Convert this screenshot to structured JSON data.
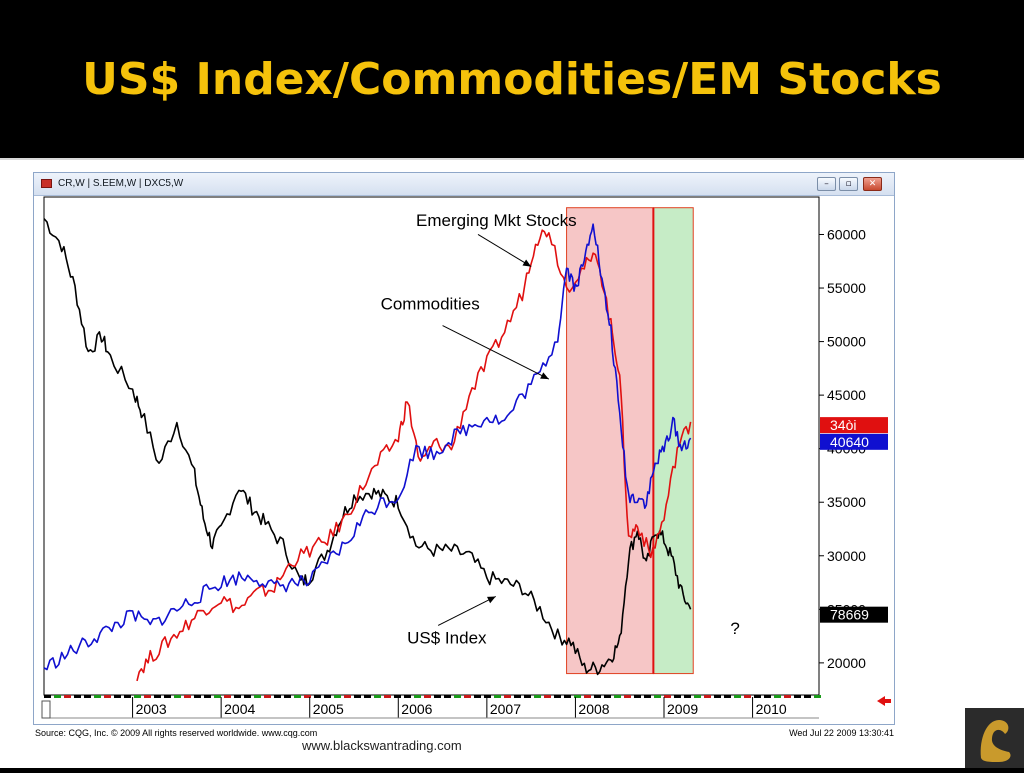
{
  "slide": {
    "title": "US$ Index/Commodities/EM Stocks",
    "footer_url": "www.blackswantrading.com"
  },
  "window": {
    "title": "CR,W  |  S.EEM,W  |  DXC5,W",
    "buttons": {
      "minimize": "–",
      "restore": "▫",
      "close": "✕"
    }
  },
  "footer": {
    "source": "Source: CQG, Inc. © 2009 All rights reserved worldwide. www.cqg.com",
    "timestamp": "Wed Jul 22 2009 13:30:41"
  },
  "colors": {
    "us_index": "#000000",
    "commodities": "#e01010",
    "em_stocks": "#1010d0",
    "red_zone": "#f0a0a0",
    "green_zone": "#a0e0a0"
  },
  "icons": {
    "logo": "swan-logo-icon",
    "arrow": "red-left-arrow-icon"
  },
  "chart_data": {
    "type": "line",
    "xlabel": "",
    "ylabel": "",
    "ylim": [
      17000,
      63500
    ],
    "xlim": [
      2002.0,
      2010.75
    ],
    "y_ticks": [
      20000,
      25000,
      30000,
      35000,
      40000,
      45000,
      50000,
      55000,
      60000
    ],
    "x_ticks": [
      "2003",
      "2004",
      "2005",
      "2006",
      "2007",
      "2008",
      "2009",
      "2010"
    ],
    "legend": "none",
    "shaded_regions": [
      {
        "color": "red",
        "start": 2007.9,
        "end": 2008.88
      },
      {
        "color": "green",
        "start": 2008.88,
        "end": 2009.33
      }
    ],
    "annotations": [
      {
        "text": "Emerging Mkt Stocks",
        "x": 2006.2,
        "y": 60800
      },
      {
        "text": "Commodities",
        "x": 2005.8,
        "y": 53000
      },
      {
        "text": "US$ Index",
        "x": 2006.1,
        "y": 21800
      },
      {
        "text": "?",
        "x": 2009.75,
        "y": 22700
      }
    ],
    "price_tags": [
      {
        "label": "34òi",
        "y": 42200,
        "color": "#e01010"
      },
      {
        "label": "40640",
        "y": 40640,
        "color": "#1010d0"
      },
      {
        "label": "78669",
        "y": 24500,
        "color": "#000000"
      }
    ],
    "series": [
      {
        "name": "US$ Index",
        "x": [
          2002.0,
          2002.2,
          2002.35,
          2002.5,
          2002.65,
          2002.75,
          2003.0,
          2003.1,
          2003.3,
          2003.5,
          2003.7,
          2003.8,
          2003.9,
          2004.0,
          2004.2,
          2004.35,
          2004.5,
          2004.7,
          2004.9,
          2005.0,
          2005.2,
          2005.35,
          2005.5,
          2005.7,
          2005.85,
          2006.0,
          2006.2,
          2006.4,
          2006.6,
          2006.8,
          2007.0,
          2007.2,
          2007.4,
          2007.6,
          2007.8,
          2007.95,
          2008.1,
          2008.25,
          2008.4,
          2008.5,
          2008.6,
          2008.7,
          2008.8,
          2008.9,
          2009.0,
          2009.1,
          2009.2,
          2009.3
        ],
        "values": [
          61500,
          59000,
          55000,
          49000,
          50500,
          48500,
          45500,
          43500,
          38500,
          42500,
          37500,
          33500,
          31000,
          32500,
          36500,
          34500,
          33000,
          31000,
          27500,
          28000,
          30500,
          33500,
          35500,
          36000,
          35500,
          35000,
          31000,
          30500,
          30500,
          30000,
          28000,
          27500,
          27000,
          25000,
          22500,
          22000,
          19500,
          19500,
          20500,
          22000,
          30000,
          32500,
          29000,
          32500,
          31500,
          29500,
          26500,
          25000
        ]
      },
      {
        "name": "Commodities",
        "x": [
          2003.05,
          2003.2,
          2003.4,
          2003.6,
          2003.8,
          2004.0,
          2004.2,
          2004.4,
          2004.6,
          2004.8,
          2005.0,
          2005.2,
          2005.4,
          2005.6,
          2005.8,
          2006.0,
          2006.1,
          2006.25,
          2006.4,
          2006.6,
          2006.8,
          2007.0,
          2007.2,
          2007.4,
          2007.55,
          2007.7,
          2007.9,
          2008.1,
          2008.25,
          2008.4,
          2008.5,
          2008.6,
          2008.7,
          2008.85,
          2009.0,
          2009.15,
          2009.3
        ],
        "values": [
          19000,
          20500,
          22000,
          23500,
          25000,
          26000,
          25000,
          26500,
          27000,
          29500,
          30500,
          31500,
          33500,
          36500,
          39000,
          41000,
          44500,
          38500,
          40500,
          40000,
          45000,
          48000,
          51000,
          54500,
          59500,
          60500,
          55000,
          57000,
          58000,
          51500,
          47000,
          31500,
          33000,
          30000,
          33500,
          40000,
          42500
        ]
      },
      {
        "name": "Emerging Mkt Stocks",
        "x": [
          2002.0,
          2002.2,
          2002.4,
          2002.6,
          2002.8,
          2003.0,
          2003.2,
          2003.4,
          2003.6,
          2003.8,
          2004.0,
          2004.2,
          2004.4,
          2004.6,
          2004.8,
          2005.0,
          2005.2,
          2005.4,
          2005.6,
          2005.8,
          2006.0,
          2006.2,
          2006.4,
          2006.6,
          2006.8,
          2007.0,
          2007.2,
          2007.4,
          2007.6,
          2007.8,
          2007.9,
          2008.0,
          2008.1,
          2008.2,
          2008.3,
          2008.4,
          2008.5,
          2008.6,
          2008.7,
          2008.8,
          2008.9,
          2009.0,
          2009.1,
          2009.2,
          2009.3
        ],
        "values": [
          19500,
          20500,
          21500,
          22500,
          23500,
          24500,
          23500,
          24500,
          25500,
          26500,
          27500,
          28000,
          28000,
          27000,
          27500,
          27500,
          29500,
          31000,
          33500,
          35000,
          35500,
          40000,
          39500,
          41000,
          42000,
          43000,
          42500,
          45000,
          47000,
          50500,
          57000,
          55000,
          57500,
          61500,
          55500,
          51000,
          43000,
          35500,
          35500,
          35000,
          38500,
          40000,
          42500,
          40000,
          41000
        ]
      }
    ]
  }
}
